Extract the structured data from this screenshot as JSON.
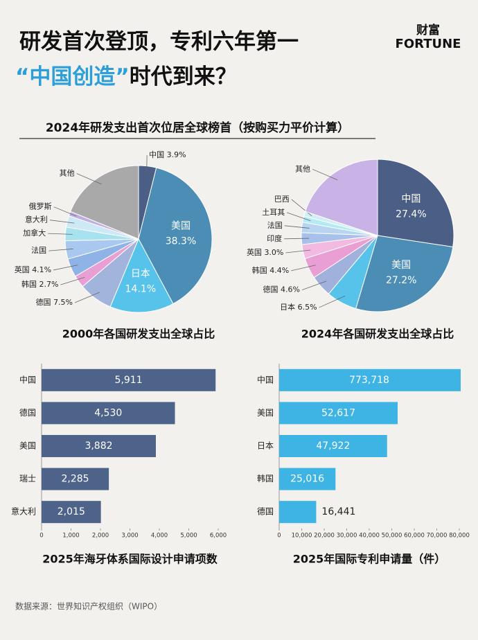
{
  "header": {
    "title_line1": "研发首次登顶，专利六年第一",
    "title_line2_highlight": "“中国创造”",
    "title_line2_rest": "时代到来？",
    "logo_cn": "财富",
    "logo_en": "FORTUNE",
    "subtitle": "2024年研发支出首次位居全球榜首（按购买力平价计算）"
  },
  "chart_data": [
    {
      "type": "pie",
      "title": "2000年各国研发支出全球占比",
      "categories": [
        "中国",
        "美国",
        "日本",
        "德国",
        "韩国",
        "英国",
        "法国",
        "加拿大",
        "意大利",
        "俄罗斯",
        "其他"
      ],
      "values": [
        3.9,
        38.3,
        14.1,
        7.5,
        2.7,
        4.1,
        4,
        3,
        2.5,
        1,
        18.9
      ],
      "value_labels": [
        "3.9%",
        "38.3%",
        "14.1%",
        "7.5%",
        "2.7%",
        "4.1%",
        null,
        null,
        null,
        null,
        null
      ],
      "colors": [
        "#4b5e85",
        "#4b8db5",
        "#57c2ea",
        "#a3b4dc",
        "#ea9fd4",
        "#8fb3e6",
        "#a9c8ef",
        "#a9e2ef",
        "#cce9f5",
        "#c3aee3",
        "#a9a9a9"
      ]
    },
    {
      "type": "pie",
      "title": "2024年各国研发支出全球占比",
      "categories": [
        "中国",
        "美国",
        "日本",
        "德国",
        "韩国",
        "英国",
        "印度",
        "法国",
        "土耳其",
        "巴西",
        "其他"
      ],
      "values": [
        27.4,
        27.2,
        6.5,
        4.6,
        4.4,
        3.0,
        2.5,
        2.2,
        1.3,
        1.0,
        19.9
      ],
      "value_labels": [
        "27.4%",
        "27.2%",
        "6.5%",
        "4.6%",
        "4.4%",
        "3.0%",
        null,
        null,
        null,
        null,
        null
      ],
      "colors": [
        "#4b5e85",
        "#4b8db5",
        "#57c2ea",
        "#a0b2dc",
        "#ea9fd4",
        "#f2b9e1",
        "#a7c1ec",
        "#b7d4f0",
        "#b3eaf3",
        "#d0eef6",
        "#c9b3e6"
      ]
    },
    {
      "type": "hbar",
      "title": "2025年海牙体系国际设计申请项数",
      "color": "#4d6389",
      "categories": [
        "中国",
        "德国",
        "美国",
        "瑞士",
        "意大利"
      ],
      "values": [
        5911,
        4530,
        3882,
        2285,
        2015
      ],
      "value_labels": [
        "5,911",
        "4,530",
        "3,882",
        "2,285",
        "2,015"
      ],
      "xlim": [
        0,
        6000
      ],
      "xticks": [
        0,
        {
          "value": 1000,
          "label": "1,000"
        },
        {
          "value": 2000,
          "label": "2,000"
        },
        {
          "value": 3000,
          "label": "3,000"
        },
        {
          "value": 4000,
          "label": "4,000"
        },
        {
          "value": 5000,
          "label": "5,000"
        },
        {
          "value": 6000,
          "label": "6,000"
        }
      ]
    },
    {
      "type": "hbar",
      "title": "2025年国际专利申请量（件）",
      "color": "#3db4e3",
      "categories": [
        "中国",
        "美国",
        "日本",
        "韩国",
        "德国"
      ],
      "values": [
        773718,
        52617,
        47922,
        25016,
        16441
      ],
      "value_labels": [
        "773,718",
        "52,617",
        "47,922",
        "25,016",
        "16,441"
      ],
      "xlim": [
        0,
        80000
      ],
      "xticks": [
        0,
        {
          "value": 10000,
          "label": "10,000"
        },
        {
          "value": 20000,
          "label": "20,000"
        },
        {
          "value": 30000,
          "label": "30,000"
        },
        {
          "value": 40000,
          "label": "40,000"
        },
        {
          "value": 50000,
          "label": "50,000"
        },
        {
          "value": 60000,
          "label": "60,000"
        },
        {
          "value": 70000,
          "label": "70,000"
        },
        {
          "value": 80000,
          "label": "80,000"
        }
      ]
    }
  ],
  "source": "数据来源：世界知识产权组织（WIPO）"
}
